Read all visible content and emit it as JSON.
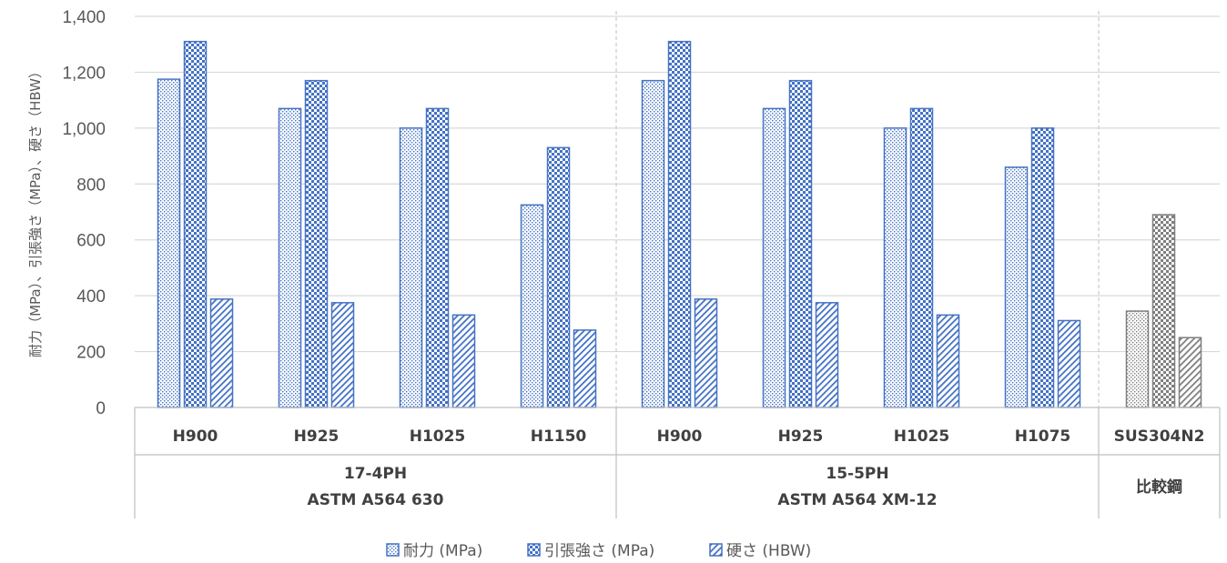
{
  "chart_data": {
    "type": "bar",
    "ylabel": "耐力（MPa）、引張強さ（MPa）、硬さ（HBW）",
    "ylim": [
      0,
      1400
    ],
    "yticks": [
      "0",
      "200",
      "400",
      "600",
      "800",
      "1,000",
      "1,200",
      "1,400"
    ],
    "ytick_values": [
      0,
      200,
      400,
      600,
      800,
      1000,
      1200,
      1400
    ],
    "grid": true,
    "legend_position": "bottom",
    "groups": [
      {
        "label_line1": "17-4PH",
        "label_line2": "ASTM A564 630",
        "categories": [
          "H900",
          "H925",
          "H1025",
          "H1150"
        ]
      },
      {
        "label_line1": "15-5PH",
        "label_line2": "ASTM A564 XM-12",
        "categories": [
          "H900",
          "H925",
          "H1025",
          "H1075"
        ]
      },
      {
        "label_line1": "SUS304N2",
        "label_line2": "比較鋼",
        "categories": [
          ""
        ]
      }
    ],
    "series": [
      {
        "name": "耐力 (MPa)",
        "color": "#4472C4",
        "compare_color": "#7F7F7F",
        "pattern": "dots-sparse",
        "values": [
          1175,
          1070,
          1000,
          725,
          1170,
          1070,
          1000,
          860,
          345
        ]
      },
      {
        "name": "引張強さ (MPa)",
        "color": "#4472C4",
        "compare_color": "#7F7F7F",
        "pattern": "checker",
        "values": [
          1310,
          1170,
          1070,
          930,
          1310,
          1170,
          1070,
          1000,
          690
        ]
      },
      {
        "name": "硬さ (HBW)",
        "color": "#4472C4",
        "compare_color": "#7F7F7F",
        "pattern": "diagonal",
        "values": [
          388,
          375,
          331,
          277,
          388,
          375,
          331,
          311,
          250
        ]
      }
    ]
  }
}
